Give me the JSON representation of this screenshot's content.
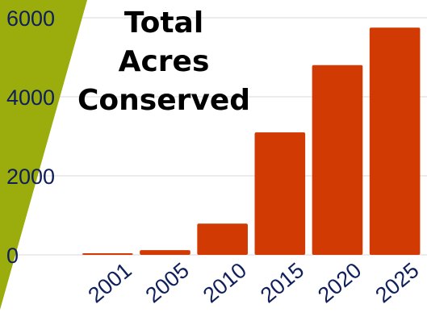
{
  "colors": {
    "bar": "#d13a03",
    "accent_band": "#9aad0c",
    "tick_text": "#0f1f5c",
    "grid": "#d9d9d9"
  },
  "chart_data": {
    "type": "bar",
    "title_lines": [
      "Total",
      "Acres",
      "Conserved"
    ],
    "categories": [
      "2001",
      "2005",
      "2010",
      "2015",
      "2020",
      "2025"
    ],
    "values": [
      40,
      120,
      790,
      3100,
      4800,
      5750
    ],
    "y_ticks": [
      "0",
      "2000",
      "4000",
      "6000"
    ],
    "ylim": [
      0,
      6000
    ],
    "xlabel": "",
    "ylabel": "",
    "grid": true,
    "legend": "none"
  }
}
